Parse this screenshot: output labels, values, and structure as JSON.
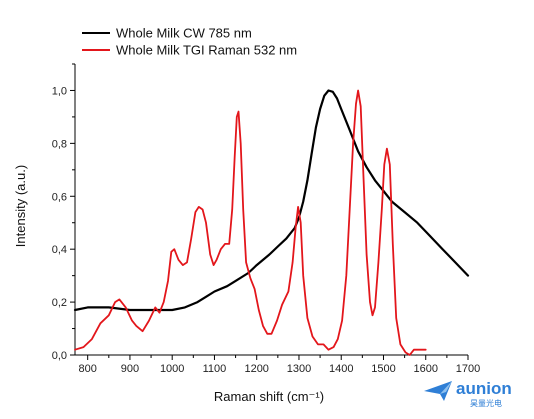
{
  "chart_data": {
    "type": "line",
    "xlabel": "Raman shift (cm⁻¹)",
    "ylabel": "Intensity (a.u.)",
    "xlim": [
      770,
      1700
    ],
    "ylim": [
      0,
      1.1
    ],
    "x_ticks": [
      800,
      900,
      1000,
      1100,
      1200,
      1300,
      1400,
      1500,
      1600,
      1700
    ],
    "y_ticks": [
      0.0,
      0.2,
      0.4,
      0.6,
      0.8,
      1.0
    ],
    "y_tick_labels": [
      "0,0",
      "0,2",
      "0,4",
      "0,6",
      "0,8",
      "1,0"
    ],
    "grid": false,
    "legend_position": "top-left",
    "series": [
      {
        "name": "Whole Milk CW 785 nm",
        "color": "#000000",
        "points": [
          [
            770,
            0.17
          ],
          [
            800,
            0.18
          ],
          [
            850,
            0.18
          ],
          [
            900,
            0.17
          ],
          [
            950,
            0.17
          ],
          [
            1000,
            0.17
          ],
          [
            1030,
            0.18
          ],
          [
            1060,
            0.2
          ],
          [
            1080,
            0.22
          ],
          [
            1100,
            0.24
          ],
          [
            1130,
            0.26
          ],
          [
            1150,
            0.28
          ],
          [
            1180,
            0.31
          ],
          [
            1200,
            0.34
          ],
          [
            1230,
            0.38
          ],
          [
            1250,
            0.41
          ],
          [
            1270,
            0.44
          ],
          [
            1290,
            0.48
          ],
          [
            1300,
            0.52
          ],
          [
            1310,
            0.58
          ],
          [
            1320,
            0.66
          ],
          [
            1330,
            0.76
          ],
          [
            1340,
            0.86
          ],
          [
            1350,
            0.93
          ],
          [
            1360,
            0.98
          ],
          [
            1370,
            1.0
          ],
          [
            1380,
            0.995
          ],
          [
            1390,
            0.97
          ],
          [
            1400,
            0.93
          ],
          [
            1420,
            0.85
          ],
          [
            1440,
            0.77
          ],
          [
            1460,
            0.71
          ],
          [
            1480,
            0.66
          ],
          [
            1500,
            0.62
          ],
          [
            1520,
            0.58
          ],
          [
            1550,
            0.54
          ],
          [
            1580,
            0.5
          ],
          [
            1610,
            0.45
          ],
          [
            1640,
            0.4
          ],
          [
            1670,
            0.35
          ],
          [
            1700,
            0.3
          ]
        ]
      },
      {
        "name": "Whole Milk TGI Raman 532 nm",
        "color": "#e3161b",
        "points": [
          [
            770,
            0.02
          ],
          [
            790,
            0.03
          ],
          [
            810,
            0.06
          ],
          [
            830,
            0.12
          ],
          [
            850,
            0.15
          ],
          [
            865,
            0.2
          ],
          [
            875,
            0.21
          ],
          [
            890,
            0.18
          ],
          [
            905,
            0.13
          ],
          [
            915,
            0.11
          ],
          [
            930,
            0.09
          ],
          [
            945,
            0.13
          ],
          [
            960,
            0.18
          ],
          [
            970,
            0.16
          ],
          [
            980,
            0.2
          ],
          [
            990,
            0.28
          ],
          [
            998,
            0.39
          ],
          [
            1005,
            0.4
          ],
          [
            1015,
            0.36
          ],
          [
            1025,
            0.34
          ],
          [
            1035,
            0.35
          ],
          [
            1045,
            0.44
          ],
          [
            1055,
            0.54
          ],
          [
            1063,
            0.56
          ],
          [
            1072,
            0.55
          ],
          [
            1080,
            0.5
          ],
          [
            1090,
            0.38
          ],
          [
            1098,
            0.34
          ],
          [
            1105,
            0.36
          ],
          [
            1115,
            0.4
          ],
          [
            1125,
            0.42
          ],
          [
            1135,
            0.42
          ],
          [
            1142,
            0.55
          ],
          [
            1148,
            0.75
          ],
          [
            1153,
            0.9
          ],
          [
            1157,
            0.92
          ],
          [
            1162,
            0.8
          ],
          [
            1168,
            0.55
          ],
          [
            1175,
            0.35
          ],
          [
            1185,
            0.29
          ],
          [
            1195,
            0.25
          ],
          [
            1205,
            0.17
          ],
          [
            1215,
            0.11
          ],
          [
            1225,
            0.08
          ],
          [
            1235,
            0.08
          ],
          [
            1248,
            0.13
          ],
          [
            1260,
            0.19
          ],
          [
            1275,
            0.24
          ],
          [
            1285,
            0.35
          ],
          [
            1292,
            0.48
          ],
          [
            1298,
            0.56
          ],
          [
            1304,
            0.5
          ],
          [
            1310,
            0.3
          ],
          [
            1320,
            0.14
          ],
          [
            1332,
            0.07
          ],
          [
            1345,
            0.04
          ],
          [
            1358,
            0.04
          ],
          [
            1370,
            0.02
          ],
          [
            1382,
            0.03
          ],
          [
            1392,
            0.06
          ],
          [
            1402,
            0.13
          ],
          [
            1412,
            0.3
          ],
          [
            1420,
            0.55
          ],
          [
            1428,
            0.8
          ],
          [
            1435,
            0.95
          ],
          [
            1440,
            1.0
          ],
          [
            1446,
            0.94
          ],
          [
            1452,
            0.7
          ],
          [
            1460,
            0.38
          ],
          [
            1468,
            0.2
          ],
          [
            1474,
            0.15
          ],
          [
            1480,
            0.18
          ],
          [
            1488,
            0.35
          ],
          [
            1496,
            0.55
          ],
          [
            1502,
            0.72
          ],
          [
            1508,
            0.78
          ],
          [
            1515,
            0.72
          ],
          [
            1522,
            0.42
          ],
          [
            1530,
            0.14
          ],
          [
            1540,
            0.04
          ],
          [
            1552,
            0.01
          ],
          [
            1562,
            0.0
          ],
          [
            1572,
            0.02
          ],
          [
            1582,
            0.02
          ],
          [
            1592,
            0.02
          ],
          [
            1600,
            0.02
          ]
        ]
      }
    ]
  },
  "logo": {
    "text": "aunion",
    "subtext": "昊量光电",
    "color": "#2f7fd6"
  }
}
